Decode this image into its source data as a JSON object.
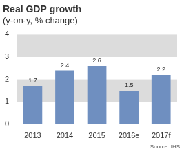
{
  "chart_data": {
    "type": "bar",
    "title": "Real GDP growth",
    "subtitle": "(y-on-y, % change)",
    "categories": [
      "2013",
      "2014",
      "2015",
      "2016e",
      "2017f"
    ],
    "values": [
      1.7,
      2.4,
      2.6,
      1.5,
      2.2
    ],
    "color": "#6f8fc0",
    "ylim": [
      0,
      4
    ],
    "yticks": [
      0,
      1,
      2,
      3,
      4
    ],
    "grid": true,
    "data_labels": true,
    "source": "Source: IHS"
  }
}
